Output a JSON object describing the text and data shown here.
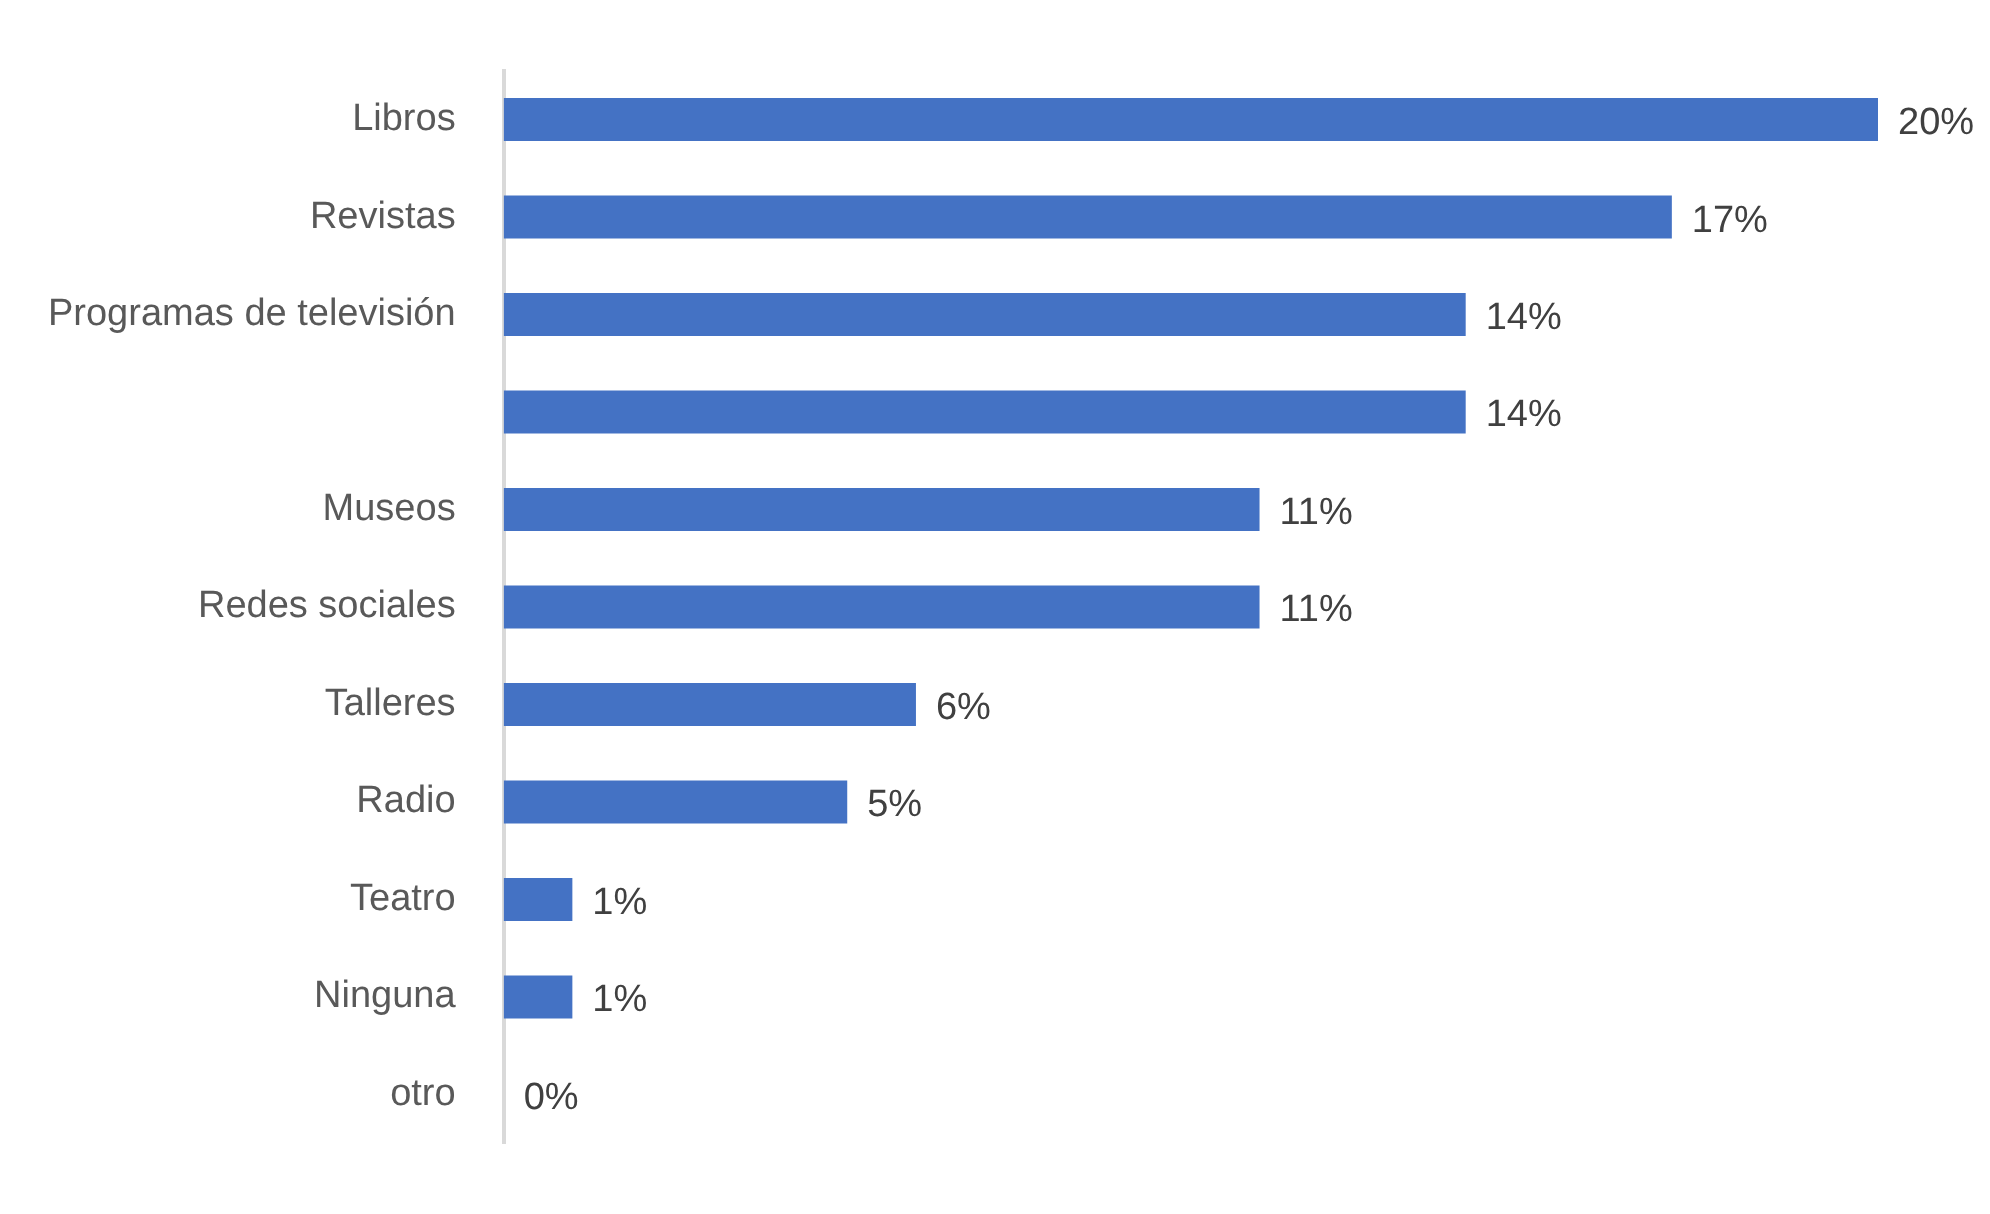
{
  "chart_data": {
    "type": "bar",
    "orientation": "horizontal",
    "tick_labels": "y",
    "categories": [
      "Libros",
      "Revistas",
      "Programas de televisión",
      null,
      "Museos",
      "Redes sociales",
      "Talleres",
      "Radio",
      "Teatro",
      "Ninguna",
      "otro"
    ],
    "values": [
      20,
      17,
      14,
      14,
      11,
      11,
      6,
      5,
      1,
      1,
      0
    ],
    "value_labels": [
      "20%",
      "17%",
      "14%",
      "14%",
      "11%",
      "11%",
      "6%",
      "5%",
      "1%",
      "1%",
      "0%"
    ],
    "color": "#4472c4"
  }
}
